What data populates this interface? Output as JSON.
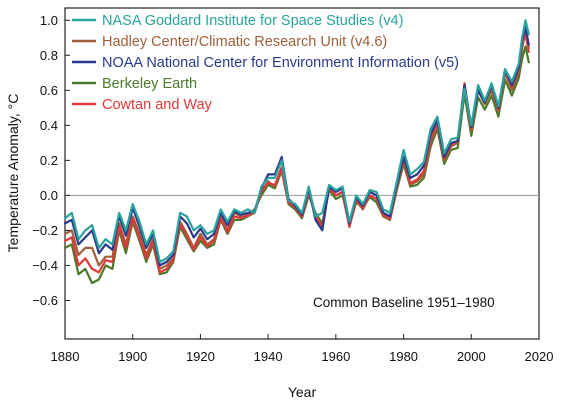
{
  "chart_data": {
    "type": "line",
    "xlabel": "Year",
    "ylabel": "Temperature Anomaly, °C",
    "xlim": [
      1880,
      2020
    ],
    "ylim": [
      -0.82,
      1.07
    ],
    "xticks": [
      "1880",
      "1900",
      "1920",
      "1940",
      "1960",
      "1980",
      "2000",
      "2020"
    ],
    "yticks": [
      "1.0",
      "0.8",
      "0.6",
      "0.4",
      "0.2",
      "0.0",
      "−0.2",
      "−0.4",
      "−0.6"
    ],
    "ytick_values": [
      1.0,
      0.8,
      0.6,
      0.4,
      0.2,
      0.0,
      -0.2,
      -0.4,
      -0.6
    ],
    "zero_line": true,
    "grid": false,
    "legend_position": "top-left",
    "annotation": "Common Baseline 1951–1980",
    "series": [
      {
        "name": "NASA Goddard Institute for Space Studies (v4)",
        "color": "#2aa39e",
        "x": [
          1880,
          1882,
          1884,
          1886,
          1888,
          1890,
          1892,
          1894,
          1896,
          1898,
          1900,
          1902,
          1904,
          1906,
          1908,
          1910,
          1912,
          1914,
          1916,
          1918,
          1920,
          1922,
          1924,
          1926,
          1928,
          1930,
          1932,
          1934,
          1936,
          1938,
          1940,
          1942,
          1944,
          1946,
          1948,
          1950,
          1952,
          1954,
          1956,
          1958,
          1960,
          1962,
          1964,
          1966,
          1968,
          1970,
          1972,
          1974,
          1976,
          1978,
          1980,
          1982,
          1984,
          1986,
          1988,
          1990,
          1992,
          1994,
          1996,
          1998,
          2000,
          2002,
          2004,
          2006,
          2008,
          2010,
          2012,
          2014,
          2015,
          2016,
          2017
        ],
        "y": [
          -0.13,
          -0.1,
          -0.25,
          -0.2,
          -0.17,
          -0.3,
          -0.25,
          -0.28,
          -0.1,
          -0.2,
          -0.05,
          -0.15,
          -0.28,
          -0.2,
          -0.38,
          -0.36,
          -0.32,
          -0.1,
          -0.12,
          -0.2,
          -0.17,
          -0.22,
          -0.2,
          -0.08,
          -0.15,
          -0.08,
          -0.1,
          -0.08,
          -0.1,
          0.05,
          0.1,
          0.1,
          0.2,
          -0.03,
          -0.05,
          -0.1,
          0.05,
          -0.12,
          -0.1,
          0.06,
          0.03,
          0.05,
          -0.15,
          0.0,
          -0.05,
          0.03,
          0.02,
          -0.08,
          -0.1,
          0.08,
          0.26,
          0.12,
          0.15,
          0.19,
          0.38,
          0.45,
          0.24,
          0.32,
          0.33,
          0.61,
          0.4,
          0.63,
          0.54,
          0.64,
          0.51,
          0.72,
          0.65,
          0.75,
          0.9,
          1.0,
          0.92
        ]
      },
      {
        "name": "Hadley Center/Climatic Research Unit (v4.6)",
        "color": "#9e5f3a",
        "x": [
          1880,
          1882,
          1884,
          1886,
          1888,
          1890,
          1892,
          1894,
          1896,
          1898,
          1900,
          1902,
          1904,
          1906,
          1908,
          1910,
          1912,
          1914,
          1916,
          1918,
          1920,
          1922,
          1924,
          1926,
          1928,
          1930,
          1932,
          1934,
          1936,
          1938,
          1940,
          1942,
          1944,
          1946,
          1948,
          1950,
          1952,
          1954,
          1956,
          1958,
          1960,
          1962,
          1964,
          1966,
          1968,
          1970,
          1972,
          1974,
          1976,
          1978,
          1980,
          1982,
          1984,
          1986,
          1988,
          1990,
          1992,
          1994,
          1996,
          1998,
          2000,
          2002,
          2004,
          2006,
          2008,
          2010,
          2012,
          2014,
          2015,
          2016,
          2017
        ],
        "y": [
          -0.22,
          -0.2,
          -0.34,
          -0.3,
          -0.3,
          -0.4,
          -0.35,
          -0.35,
          -0.16,
          -0.28,
          -0.12,
          -0.22,
          -0.34,
          -0.25,
          -0.42,
          -0.4,
          -0.36,
          -0.15,
          -0.22,
          -0.3,
          -0.22,
          -0.28,
          -0.25,
          -0.12,
          -0.2,
          -0.1,
          -0.12,
          -0.12,
          -0.1,
          0.02,
          0.08,
          0.05,
          0.15,
          -0.04,
          -0.07,
          -0.12,
          0.02,
          -0.12,
          -0.18,
          0.04,
          0.0,
          0.02,
          -0.18,
          -0.03,
          -0.08,
          0.0,
          -0.02,
          -0.12,
          -0.14,
          0.04,
          0.2,
          0.06,
          0.08,
          0.12,
          0.3,
          0.4,
          0.2,
          0.28,
          0.3,
          0.62,
          0.37,
          0.6,
          0.52,
          0.6,
          0.48,
          0.7,
          0.6,
          0.7,
          0.84,
          0.94,
          0.84
        ]
      },
      {
        "name": "NOAA National Center for Environment Information (v5)",
        "color": "#2a3a8c",
        "x": [
          1880,
          1882,
          1884,
          1886,
          1888,
          1890,
          1892,
          1894,
          1896,
          1898,
          1900,
          1902,
          1904,
          1906,
          1908,
          1910,
          1912,
          1914,
          1916,
          1918,
          1920,
          1922,
          1924,
          1926,
          1928,
          1930,
          1932,
          1934,
          1936,
          1938,
          1940,
          1942,
          1944,
          1946,
          1948,
          1950,
          1952,
          1954,
          1956,
          1958,
          1960,
          1962,
          1964,
          1966,
          1968,
          1970,
          1972,
          1974,
          1976,
          1978,
          1980,
          1982,
          1984,
          1986,
          1988,
          1990,
          1992,
          1994,
          1996,
          1998,
          2000,
          2002,
          2004,
          2006,
          2008,
          2010,
          2012,
          2014,
          2015,
          2016,
          2017
        ],
        "y": [
          -0.16,
          -0.14,
          -0.28,
          -0.24,
          -0.2,
          -0.33,
          -0.28,
          -0.31,
          -0.12,
          -0.23,
          -0.07,
          -0.18,
          -0.3,
          -0.22,
          -0.4,
          -0.38,
          -0.34,
          -0.12,
          -0.16,
          -0.24,
          -0.19,
          -0.25,
          -0.22,
          -0.1,
          -0.17,
          -0.09,
          -0.11,
          -0.1,
          -0.09,
          0.04,
          0.12,
          0.12,
          0.22,
          -0.02,
          -0.06,
          -0.11,
          0.04,
          -0.14,
          -0.2,
          0.05,
          0.02,
          0.04,
          -0.16,
          -0.01,
          -0.06,
          0.02,
          0.0,
          -0.1,
          -0.12,
          0.06,
          0.22,
          0.1,
          0.12,
          0.17,
          0.35,
          0.43,
          0.22,
          0.3,
          0.31,
          0.63,
          0.39,
          0.6,
          0.53,
          0.63,
          0.5,
          0.72,
          0.63,
          0.73,
          0.88,
          0.96,
          0.86
        ]
      },
      {
        "name": "Berkeley Earth",
        "color": "#4a7a2a",
        "x": [
          1880,
          1882,
          1884,
          1886,
          1888,
          1890,
          1892,
          1894,
          1896,
          1898,
          1900,
          1902,
          1904,
          1906,
          1908,
          1910,
          1912,
          1914,
          1916,
          1918,
          1920,
          1922,
          1924,
          1926,
          1928,
          1930,
          1932,
          1934,
          1936,
          1938,
          1940,
          1942,
          1944,
          1946,
          1948,
          1950,
          1952,
          1954,
          1956,
          1958,
          1960,
          1962,
          1964,
          1966,
          1968,
          1970,
          1972,
          1974,
          1976,
          1978,
          1980,
          1982,
          1984,
          1986,
          1988,
          1990,
          1992,
          1994,
          1996,
          1998,
          2000,
          2002,
          2004,
          2006,
          2008,
          2010,
          2012,
          2014,
          2015,
          2016,
          2017
        ],
        "y": [
          -0.3,
          -0.28,
          -0.45,
          -0.42,
          -0.5,
          -0.48,
          -0.4,
          -0.42,
          -0.2,
          -0.33,
          -0.15,
          -0.26,
          -0.38,
          -0.28,
          -0.45,
          -0.44,
          -0.38,
          -0.18,
          -0.25,
          -0.32,
          -0.26,
          -0.3,
          -0.28,
          -0.14,
          -0.22,
          -0.14,
          -0.14,
          -0.12,
          -0.08,
          0.0,
          0.06,
          0.04,
          0.14,
          -0.05,
          -0.08,
          -0.13,
          0.0,
          -0.1,
          -0.16,
          0.03,
          -0.02,
          0.0,
          -0.17,
          -0.04,
          -0.07,
          -0.01,
          -0.04,
          -0.12,
          -0.14,
          0.03,
          0.18,
          0.05,
          0.06,
          0.1,
          0.28,
          0.38,
          0.18,
          0.26,
          0.27,
          0.58,
          0.34,
          0.56,
          0.49,
          0.57,
          0.45,
          0.66,
          0.57,
          0.67,
          0.78,
          0.85,
          0.76
        ]
      },
      {
        "name": "Cowtan and Way",
        "color": "#e0393a",
        "x": [
          1880,
          1882,
          1884,
          1886,
          1888,
          1890,
          1892,
          1894,
          1896,
          1898,
          1900,
          1902,
          1904,
          1906,
          1908,
          1910,
          1912,
          1914,
          1916,
          1918,
          1920,
          1922,
          1924,
          1926,
          1928,
          1930,
          1932,
          1934,
          1936,
          1938,
          1940,
          1942,
          1944,
          1946,
          1948,
          1950,
          1952,
          1954,
          1956,
          1958,
          1960,
          1962,
          1964,
          1966,
          1968,
          1970,
          1972,
          1974,
          1976,
          1978,
          1980,
          1982,
          1984,
          1986,
          1988,
          1990,
          1992,
          1994,
          1996,
          1998,
          2000,
          2002,
          2004,
          2006,
          2008,
          2010,
          2012,
          2014,
          2015,
          2016,
          2017
        ],
        "y": [
          -0.26,
          -0.24,
          -0.4,
          -0.36,
          -0.42,
          -0.44,
          -0.37,
          -0.38,
          -0.18,
          -0.3,
          -0.13,
          -0.24,
          -0.36,
          -0.26,
          -0.44,
          -0.42,
          -0.37,
          -0.16,
          -0.23,
          -0.31,
          -0.24,
          -0.29,
          -0.26,
          -0.13,
          -0.21,
          -0.12,
          -0.13,
          -0.11,
          -0.09,
          0.02,
          0.07,
          0.06,
          0.16,
          -0.04,
          -0.07,
          -0.12,
          0.02,
          -0.12,
          -0.18,
          0.04,
          0.0,
          0.02,
          -0.18,
          -0.02,
          -0.07,
          0.0,
          -0.02,
          -0.11,
          -0.13,
          0.05,
          0.21,
          0.07,
          0.09,
          0.14,
          0.32,
          0.42,
          0.21,
          0.29,
          0.31,
          0.64,
          0.38,
          0.62,
          0.54,
          0.63,
          0.49,
          0.72,
          0.62,
          0.72,
          0.86,
          0.92,
          0.82
        ]
      }
    ]
  }
}
